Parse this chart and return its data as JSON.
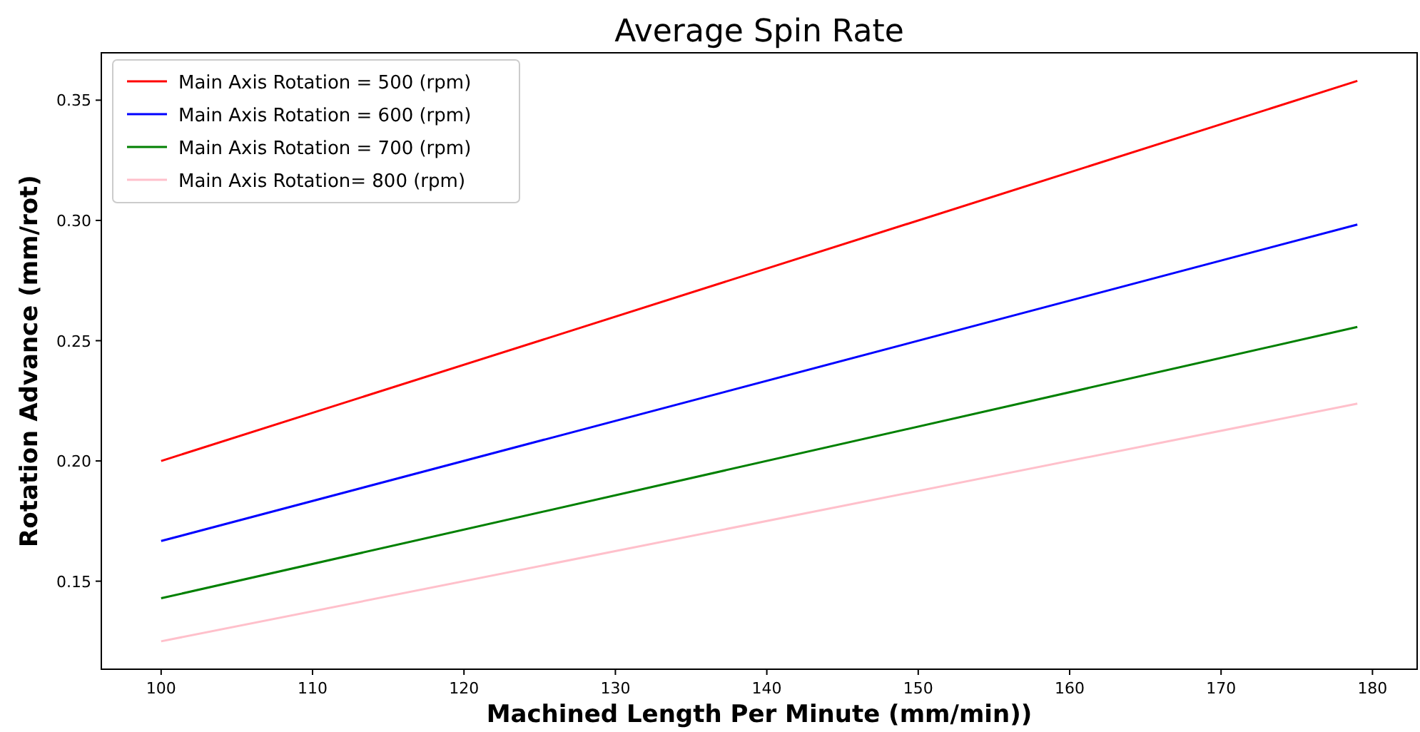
{
  "chart_data": {
    "type": "line",
    "title": "Average Spin Rate",
    "xlabel": "Machined Length Per Minute (mm/min))",
    "ylabel": "Rotation Advance (mm/rot)",
    "x": [
      100,
      179
    ],
    "series": [
      {
        "name": "Main Axis Rotation = 500 (rpm)",
        "color": "#ff0000",
        "values": [
          0.2,
          0.358
        ]
      },
      {
        "name": "Main Axis Rotation = 600 (rpm)",
        "color": "#0000ff",
        "values": [
          0.1667,
          0.2983
        ]
      },
      {
        "name": "Main Axis Rotation = 700 (rpm)",
        "color": "#008000",
        "values": [
          0.1429,
          0.2557
        ]
      },
      {
        "name": "Main Axis Rotation= 800 (rpm)",
        "color": "#ffc0cb",
        "values": [
          0.125,
          0.2238
        ]
      }
    ],
    "xlim": [
      96.05,
      182.95
    ],
    "xticks": [
      100,
      110,
      120,
      130,
      140,
      150,
      160,
      170,
      180
    ],
    "ylim": [
      0.1134,
      0.3697
    ],
    "yticks": [
      {
        "value": 0.15,
        "label": "0.15"
      },
      {
        "value": 0.2,
        "label": "0.20"
      },
      {
        "value": 0.25,
        "label": "0.25"
      },
      {
        "value": 0.3,
        "label": "0.30"
      },
      {
        "value": 0.35,
        "label": "0.35"
      }
    ],
    "legend": "top left",
    "grid": false,
    "marker": "none",
    "line_style": "solid"
  }
}
